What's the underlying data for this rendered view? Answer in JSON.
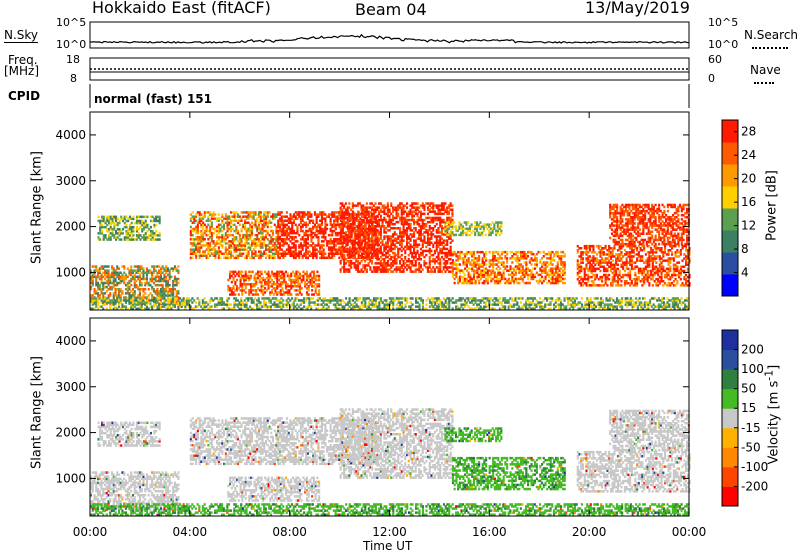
{
  "header": {
    "radar": "Hokkaido East (fitACF)",
    "beam": "Beam 04",
    "date": "13/May/2019"
  },
  "noise_panel": {
    "left_label": "N.Sky",
    "ticks_left": [
      "10^5",
      "10^0"
    ],
    "ticks_right": [
      "10^5",
      "10^0"
    ],
    "right_label": "N.Search"
  },
  "freq_panel": {
    "left_label_1": "Freq.",
    "left_label_2": "[MHz]",
    "ticks_left": [
      "18",
      "8"
    ],
    "ticks_right": [
      "60",
      "0"
    ],
    "right_label": "Nave"
  },
  "cpid_panel": {
    "left_label": "CPID",
    "mode": "normal (fast) 151"
  },
  "x_axis": {
    "ticks": [
      "00:00",
      "04:00",
      "08:00",
      "12:00",
      "16:00",
      "20:00",
      "00:00"
    ],
    "label": "Time UT"
  },
  "colors": {
    "power": [
      "#0000ff",
      "#2a4fa0",
      "#3b8060",
      "#5aa050",
      "#ffd000",
      "#ff9900",
      "#ff5a00",
      "#ff1a00"
    ],
    "velocity": [
      "#ff0000",
      "#ff4400",
      "#ff8800",
      "#ffb000",
      "#c8c8c8",
      "#44bb22",
      "#2f7f3f",
      "#2a4f9f",
      "#1f2f9f"
    ]
  },
  "chart_data": [
    {
      "type": "heatmap",
      "title": "Power",
      "ylabel": "Slant Range [km]",
      "xlabel": "Time UT",
      "x_range": [
        "00:00",
        "24:00"
      ],
      "y_range": [
        180,
        4500
      ],
      "yticks": [
        "1000",
        "2000",
        "3000",
        "4000"
      ],
      "colorbar": {
        "label": "Power [dB]",
        "ticks": [
          "4",
          "8",
          "12",
          "16",
          "20",
          "24",
          "28"
        ],
        "range": [
          0,
          30
        ]
      },
      "features": [
        {
          "time": "00:00-03:30",
          "range_km": "300-1200",
          "level": "medium-high"
        },
        {
          "time": "05:30-09:00",
          "range_km": "500-1000",
          "level": "high"
        },
        {
          "time": "07:00-14:30",
          "range_km": "1200-2500",
          "level": "high"
        },
        {
          "time": "14:30-19:00",
          "range_km": "800-1500",
          "level": "medium-high"
        },
        {
          "time": "19:30-24:00",
          "range_km": "700-2500",
          "level": "high"
        }
      ]
    },
    {
      "type": "heatmap",
      "title": "Velocity",
      "ylabel": "Slant Range [km]",
      "xlabel": "Time UT",
      "x_range": [
        "00:00",
        "24:00"
      ],
      "y_range": [
        180,
        4500
      ],
      "yticks": [
        "1000",
        "2000",
        "3000",
        "4000"
      ],
      "colorbar": {
        "label": "Velocity [m s^-1]",
        "ticks": [
          "200",
          "100",
          "50",
          "15",
          "-15",
          "-50",
          "-100",
          "-200"
        ],
        "range": [
          -250,
          250
        ]
      },
      "features": [
        {
          "time": "00:00-14:30",
          "range_km": "300-2400",
          "level": "near zero (grey)"
        },
        {
          "time": "14:30-19:00",
          "range_km": "700-1500",
          "level": "positive 15-100 (green)"
        },
        {
          "time": "19:30-24:00",
          "range_km": "700-2400",
          "level": "near zero (grey)"
        }
      ]
    }
  ]
}
